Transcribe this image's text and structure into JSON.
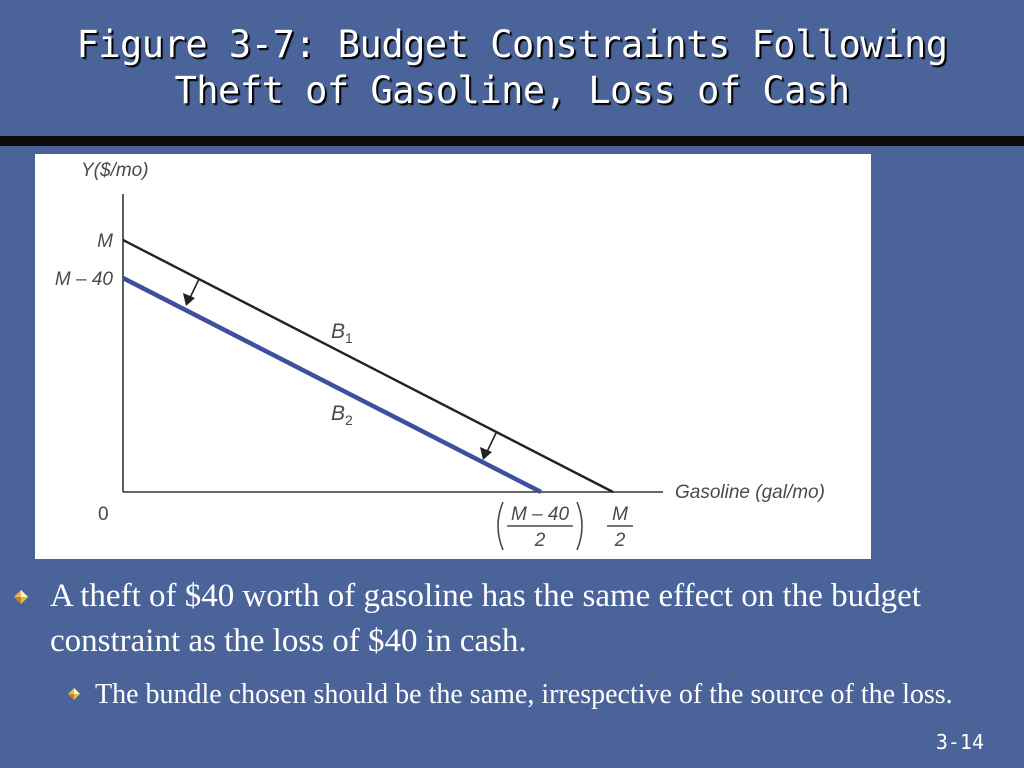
{
  "title": {
    "line1": "Figure 3-7: Budget Constraints Following",
    "line2": "Theft of Gasoline, Loss of Cash"
  },
  "figure": {
    "y_axis_label": "Y($/mo)",
    "x_axis_label": "Gasoline (gal/mo)",
    "origin_label": "0",
    "y_intercept_b1": "M",
    "y_intercept_b2": "M – 40",
    "line_b1": {
      "letter": "B",
      "subscript": "1"
    },
    "line_b2": {
      "letter": "B",
      "subscript": "2"
    },
    "x_intercept_b2": {
      "numerator": "M – 40",
      "denominator": "2"
    },
    "x_intercept_b1": {
      "numerator": "M",
      "denominator": "2"
    },
    "colors": {
      "b1": "#222222",
      "b2": "#3d4f9e",
      "axes": "#333333"
    }
  },
  "bullets": {
    "main": "A theft of $40 worth of gasoline has the same effect on the budget constraint as the loss of $40 in cash.",
    "sub": "The bundle chosen should be the same, irrespective of the source of the loss."
  },
  "slide_number": "3-14"
}
